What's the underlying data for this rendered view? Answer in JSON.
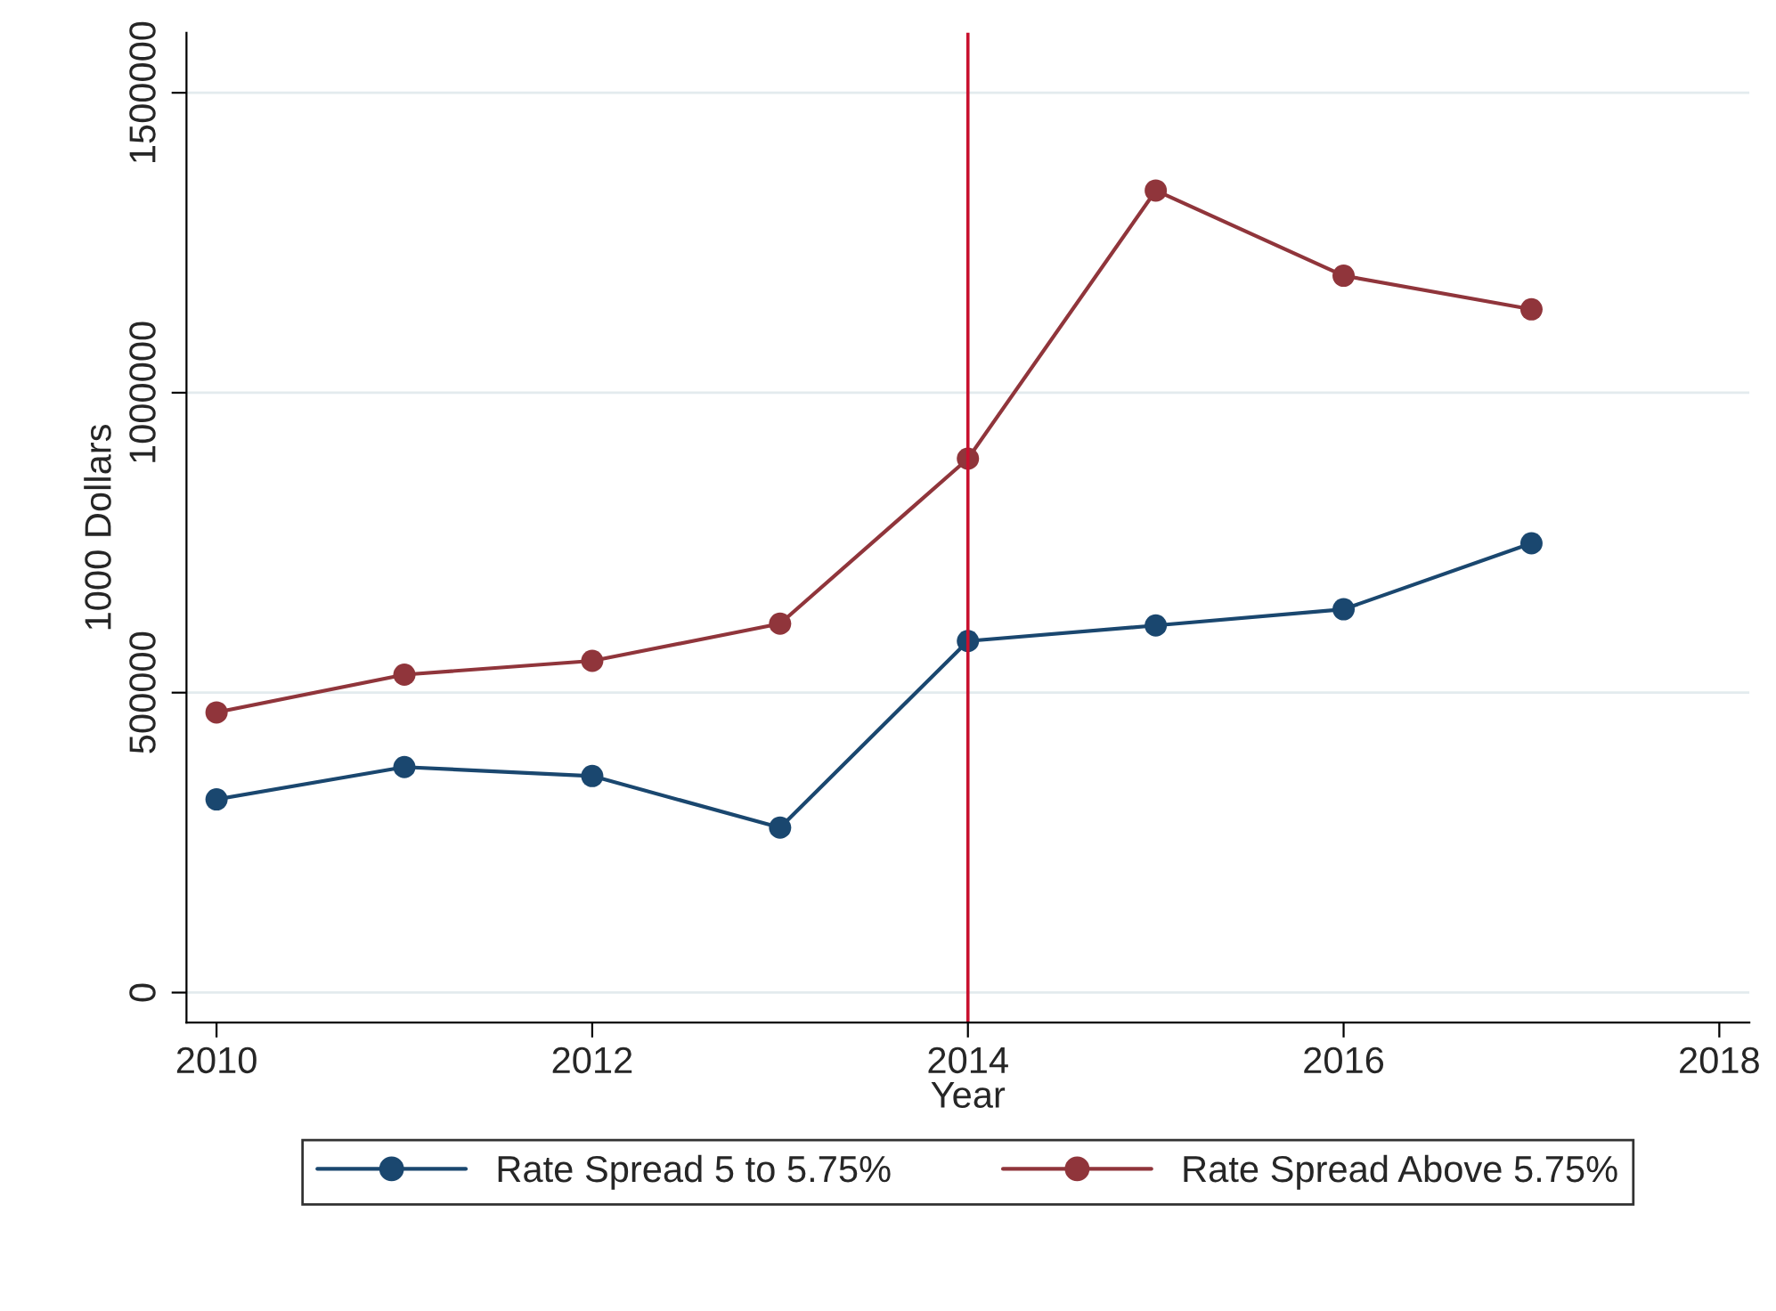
{
  "chart_data": {
    "type": "line",
    "xlabel": "Year",
    "ylabel": "1000 Dollars",
    "x": [
      2010,
      2011,
      2012,
      2013,
      2014,
      2015,
      2016,
      2017
    ],
    "series": [
      {
        "name": "Rate Spread 5 to 5.75%",
        "color": "#1a476f",
        "values": [
          322000,
          376000,
          361000,
          275000,
          586000,
          612000,
          639000,
          749000
        ]
      },
      {
        "name": "Rate Spread Above 5.75%",
        "color": "#90353b",
        "values": [
          467000,
          530000,
          553000,
          615000,
          890000,
          1337000,
          1195000,
          1139000
        ]
      }
    ],
    "xlim": [
      2009.84,
      2018.16
    ],
    "xticks": [
      2010,
      2012,
      2014,
      2016,
      2018
    ],
    "ylim": [
      -50000,
      1600000
    ],
    "yticks": [
      0,
      500000,
      1000000,
      1500000
    ],
    "ref_lines": [
      {
        "axis": "x",
        "value": 2014,
        "color": "#c8102e"
      }
    ],
    "grid": "y",
    "legend": "bottom",
    "marker": "circle",
    "line_style": "solid"
  }
}
